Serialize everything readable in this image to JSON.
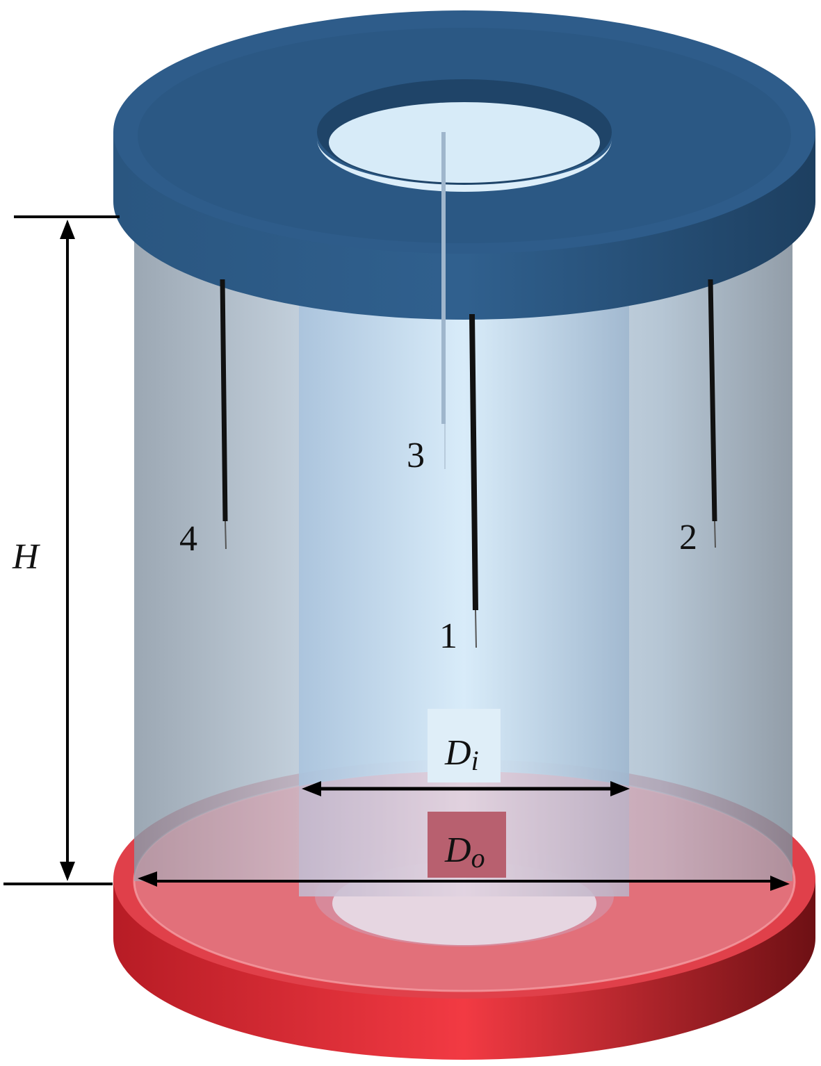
{
  "labels": {
    "height": "H",
    "inner_diameter_main": "D",
    "inner_diameter_sub": "i",
    "outer_diameter_main": "D",
    "outer_diameter_sub": "o",
    "probe_1": "1",
    "probe_2": "2",
    "probe_3": "3",
    "probe_4": "4"
  },
  "colors": {
    "top_plate": "#2c5a87",
    "bottom_plate": "#e8232f",
    "cylinder": "#b9cfe0"
  }
}
